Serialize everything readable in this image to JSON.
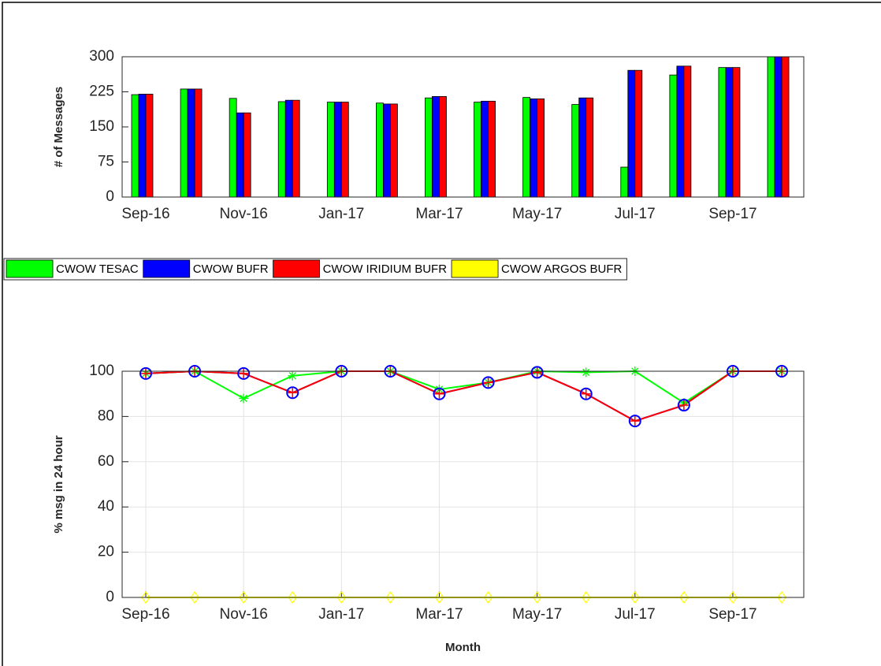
{
  "chart_data": [
    {
      "type": "bar",
      "ylabel": "# of Messages",
      "categories": [
        "Sep-16",
        null,
        "Nov-16",
        null,
        "Jan-17",
        null,
        "Mar-17",
        null,
        "May-17",
        null,
        "Jul-17",
        null,
        "Sep-17",
        null
      ],
      "series": [
        {
          "name": "CWOW TESAC",
          "color": "#00ff00",
          "values": [
            219,
            231,
            211,
            204,
            203,
            201,
            212,
            203,
            213,
            198,
            64,
            261,
            277,
            300
          ]
        },
        {
          "name": "CWOW BUFR",
          "color": "#0000ff",
          "values": [
            220,
            231,
            180,
            207,
            203,
            199,
            215,
            205,
            210,
            212,
            271,
            280,
            277,
            300
          ]
        },
        {
          "name": "CWOW IRIDIUM BUFR",
          "color": "#ff0000",
          "values": [
            220,
            231,
            180,
            207,
            203,
            199,
            215,
            205,
            210,
            212,
            271,
            280,
            277,
            300
          ]
        },
        {
          "name": "CWOW ARGOS BUFR",
          "color": "#ffff00",
          "values": [
            0,
            0,
            0,
            0,
            0,
            0,
            0,
            0,
            0,
            0,
            0,
            0,
            0,
            0
          ]
        }
      ],
      "ylim": [
        0,
        300
      ],
      "yticks": [
        0,
        75,
        150,
        225,
        300
      ],
      "grid": false,
      "legend": "below"
    },
    {
      "type": "line",
      "ylabel": "% msg in 24 hour",
      "xlabel": "Month",
      "categories": [
        "Sep-16",
        null,
        "Nov-16",
        null,
        "Jan-17",
        null,
        "Mar-17",
        null,
        "May-17",
        null,
        "Jul-17",
        null,
        "Sep-17",
        null
      ],
      "series": [
        {
          "name": "CWOW TESAC",
          "color": "#00ff00",
          "marker": "star",
          "values": [
            99,
            100,
            88,
            98,
            100,
            100,
            92,
            95,
            100,
            99.5,
            100,
            86,
            100,
            100
          ]
        },
        {
          "name": "CWOW BUFR",
          "color": "#0000ff",
          "marker": "circle",
          "values": [
            99,
            100,
            99,
            90.5,
            100,
            100,
            90,
            95,
            99.5,
            90,
            78,
            85,
            100,
            100
          ]
        },
        {
          "name": "CWOW IRIDIUM BUFR",
          "color": "#ff0000",
          "marker": "plus",
          "values": [
            99,
            100,
            99,
            90.5,
            100,
            100,
            90,
            95,
            99.5,
            90,
            78,
            85,
            100,
            100
          ]
        },
        {
          "name": "CWOW ARGOS BUFR",
          "color": "#ffff00",
          "marker": "diamond",
          "values": [
            0,
            0,
            0,
            0,
            0,
            0,
            0,
            0,
            0,
            0,
            0,
            0,
            0,
            0
          ]
        }
      ],
      "ylim": [
        0,
        100
      ],
      "yticks": [
        0,
        20,
        40,
        60,
        80,
        100
      ],
      "grid": true
    }
  ]
}
